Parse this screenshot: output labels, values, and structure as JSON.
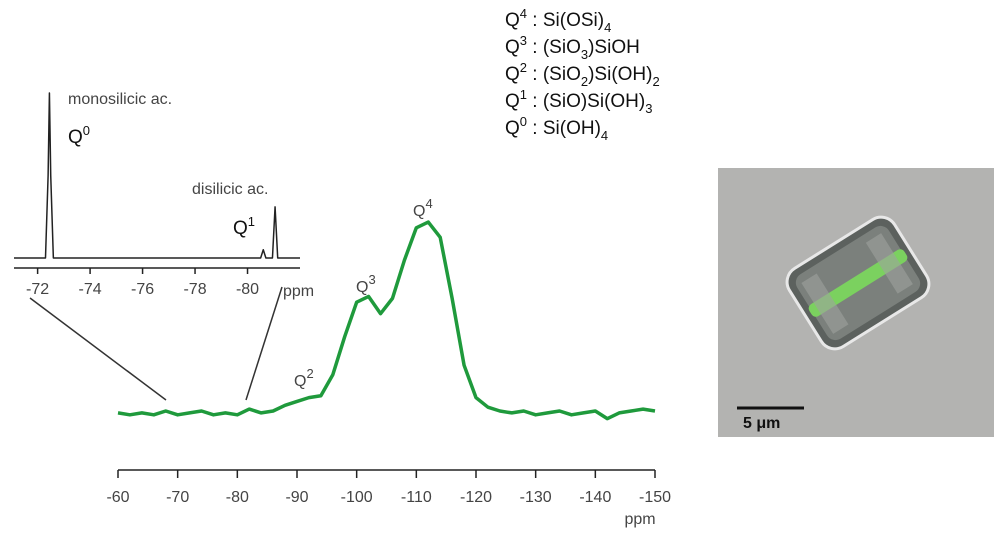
{
  "chart_data": [
    {
      "type": "line",
      "color": "#1f9a3c",
      "x": [
        -60,
        -62,
        -64,
        -66,
        -68,
        -70,
        -72,
        -74,
        -76,
        -78,
        -80,
        -82,
        -84,
        -86,
        -88,
        -90,
        -92,
        -94,
        -96,
        -98,
        -100,
        -102,
        -104,
        -106,
        -108,
        -110,
        -112,
        -114,
        -116,
        -118,
        -120,
        -122,
        -124,
        -126,
        -128,
        -130,
        -132,
        -134,
        -136,
        -138,
        -140,
        -142,
        -144,
        -146,
        -148,
        -150
      ],
      "values": [
        0,
        -1,
        0,
        -1,
        1,
        -1,
        0,
        1,
        -1,
        0,
        -1,
        2,
        0,
        1,
        4,
        6,
        8,
        9,
        20,
        40,
        58,
        61,
        52,
        60,
        80,
        97,
        100,
        92,
        60,
        25,
        8,
        3,
        1,
        0,
        1,
        -1,
        0,
        1,
        -1,
        0,
        1,
        -3,
        0,
        1,
        2,
        1
      ],
      "xlim": [
        -60,
        -150
      ],
      "xticks": [
        -60,
        -70,
        -80,
        -90,
        -100,
        -110,
        -120,
        -130,
        -140,
        -150
      ],
      "ylim": [
        -10,
        105
      ],
      "x_label": "ppm",
      "annotations": [
        [
          "Q",
          "2"
        ],
        [
          "Q",
          "3"
        ],
        [
          "Q",
          "4"
        ]
      ]
    },
    {
      "type": "line",
      "color": "#222222",
      "x": [
        -71.1,
        -72.3,
        -72.4,
        -72.45,
        -72.5,
        -72.6,
        -74,
        -76,
        -78,
        -80,
        -80.5,
        -80.6,
        -80.7,
        -80.95,
        -81.05,
        -81.15,
        -82
      ],
      "values": [
        0,
        0,
        50,
        100,
        50,
        0,
        0,
        0,
        0,
        0,
        0,
        5,
        0,
        0,
        31,
        0,
        0
      ],
      "xlim": [
        -71.1,
        -82
      ],
      "xticks": [
        -72,
        -74,
        -76,
        -78,
        -80
      ],
      "ylim": [
        0,
        100
      ],
      "x_label": "ppm",
      "annotations": [
        "monosilicic ac.",
        [
          "Q",
          "0"
        ],
        "disilicic ac.",
        [
          "Q",
          "1"
        ]
      ]
    }
  ],
  "formulas": [
    [
      "Q",
      "4",
      " : Si(OSi)",
      "4"
    ],
    [
      "Q",
      "3",
      " : (SiO",
      "3",
      ")SiOH"
    ],
    [
      "Q",
      "2",
      " : (SiO",
      "2",
      ")Si(OH)",
      "2"
    ],
    [
      "Q",
      "1",
      " : (SiO)Si(OH)",
      "3"
    ],
    [
      "Q",
      "0",
      " : Si(OH)",
      "4"
    ]
  ],
  "micrograph": {
    "scale_label": "5 μm"
  }
}
